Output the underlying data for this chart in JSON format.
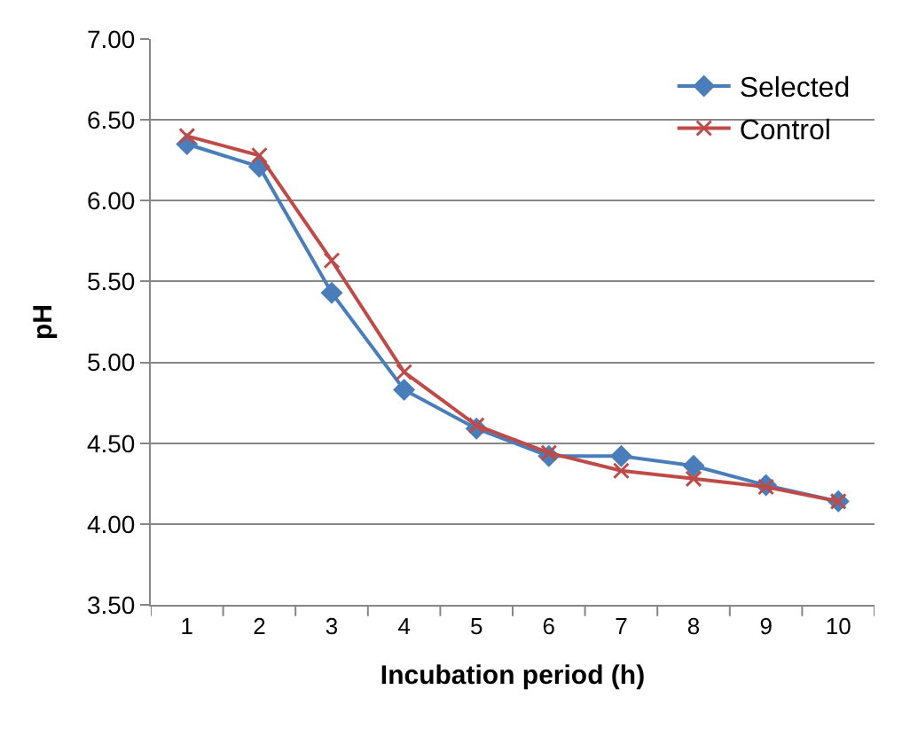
{
  "chart_data": {
    "type": "line",
    "xlabel": "Incubation period (h)",
    "ylabel": "pH",
    "categories": [
      "1",
      "2",
      "3",
      "4",
      "5",
      "6",
      "7",
      "8",
      "9",
      "10"
    ],
    "series": [
      {
        "name": "Selected",
        "color": "#4a7ebb",
        "marker": "diamond",
        "values": [
          6.35,
          6.21,
          5.43,
          4.83,
          4.59,
          4.42,
          4.42,
          4.36,
          4.24,
          4.14
        ]
      },
      {
        "name": "Control",
        "color": "#be4b48",
        "marker": "cross",
        "values": [
          6.4,
          6.28,
          5.63,
          4.94,
          4.61,
          4.44,
          4.33,
          4.28,
          4.23,
          4.14
        ]
      }
    ],
    "ylim": [
      3.5,
      7.0
    ],
    "yticks": [
      {
        "value": 3.5,
        "label": "3.50"
      },
      {
        "value": 4.0,
        "label": "4.00"
      },
      {
        "value": 4.5,
        "label": "4.50"
      },
      {
        "value": 5.0,
        "label": "5.00"
      },
      {
        "value": 5.5,
        "label": "5.50"
      },
      {
        "value": 6.0,
        "label": "6.00"
      },
      {
        "value": 6.5,
        "label": "6.50"
      },
      {
        "value": 7.0,
        "label": "7.00"
      }
    ],
    "grid": "y",
    "legend": "top right",
    "line_style": "solid"
  }
}
